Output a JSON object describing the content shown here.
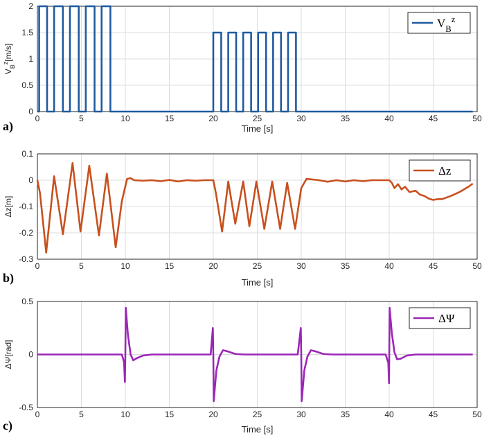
{
  "chart_data": [
    {
      "id": "a",
      "type": "line",
      "panel_label": "a)",
      "xlabel": "Time [s]",
      "ylabel": "V_B^z[m/s]",
      "legend": "V_B^z",
      "color": "#1f5aa0",
      "xlim": [
        0,
        50
      ],
      "ylim": [
        0,
        2
      ],
      "xticks": [
        0,
        5,
        10,
        15,
        20,
        25,
        30,
        35,
        40,
        45,
        50
      ],
      "yticks": [
        0,
        0.5,
        1,
        1.5,
        2
      ],
      "ytick_labels": [
        "0",
        "0.5",
        "1",
        "1.5",
        "2"
      ],
      "series": [
        {
          "name": "V_B^z",
          "x": [
            0,
            0.2,
            0.2,
            1.1,
            1.1,
            1.9,
            1.9,
            2.9,
            2.9,
            3.7,
            3.7,
            4.7,
            4.7,
            5.5,
            5.5,
            6.5,
            6.5,
            7.3,
            7.3,
            8.3,
            8.3,
            9.1,
            9.1,
            20.0,
            20.0,
            20.9,
            20.9,
            21.7,
            21.7,
            22.6,
            22.6,
            23.4,
            23.4,
            24.3,
            24.3,
            25.1,
            25.1,
            26.0,
            26.0,
            26.8,
            26.8,
            27.7,
            27.7,
            28.5,
            28.5,
            29.4,
            29.4,
            49.5
          ],
          "y": [
            0,
            0,
            2,
            2,
            0,
            0,
            2,
            2,
            0,
            0,
            2,
            2,
            0,
            0,
            2,
            2,
            0,
            0,
            2,
            2,
            0,
            0,
            0,
            0,
            1.5,
            1.5,
            0,
            0,
            1.5,
            1.5,
            0,
            0,
            1.5,
            1.5,
            0,
            0,
            1.5,
            1.5,
            0,
            0,
            1.5,
            1.5,
            0,
            0,
            1.5,
            1.5,
            0,
            0
          ]
        }
      ]
    },
    {
      "id": "b",
      "type": "line",
      "panel_label": "b)",
      "xlabel": "Time [s]",
      "ylabel": "Δz[m]",
      "legend": "Δz",
      "color": "#c8501e",
      "xlim": [
        0,
        50
      ],
      "ylim": [
        -0.3,
        0.1
      ],
      "xticks": [
        0,
        5,
        10,
        15,
        20,
        25,
        30,
        35,
        40,
        45,
        50
      ],
      "yticks": [
        -0.3,
        -0.2,
        -0.1,
        0,
        0.1
      ],
      "ytick_labels": [
        "-0.3",
        "-0.2",
        "-0.1",
        "0",
        "0.1"
      ],
      "series": [
        {
          "name": "Δz",
          "x": [
            0,
            0.3,
            1.0,
            1.9,
            2.9,
            4.0,
            4.9,
            5.9,
            7.0,
            7.9,
            8.9,
            9.6,
            10.2,
            10.6,
            11,
            12,
            13,
            14,
            15,
            16,
            17,
            18,
            19,
            20,
            20.3,
            21.0,
            21.7,
            22.5,
            23.4,
            24.1,
            24.9,
            25.8,
            26.7,
            27.6,
            28.4,
            29.3,
            30,
            30.6,
            31.2,
            32,
            33,
            34,
            35,
            36,
            37,
            38,
            39,
            40,
            40.3,
            40.6,
            41.0,
            41.4,
            41.8,
            42.3,
            43.0,
            43.5,
            44.0,
            44.5,
            45.0,
            45.5,
            46.0,
            47.0,
            48.0,
            49.0,
            49.5
          ],
          "y": [
            0,
            -0.05,
            -0.275,
            0.015,
            -0.205,
            0.065,
            -0.195,
            0.055,
            -0.21,
            0.025,
            -0.255,
            -0.08,
            0.005,
            0.008,
            0.0,
            -0.002,
            0.0,
            -0.004,
            0.001,
            -0.005,
            0.0,
            -0.002,
            0.0,
            0.0,
            -0.05,
            -0.195,
            -0.005,
            -0.165,
            -0.005,
            -0.175,
            -0.005,
            -0.185,
            -0.005,
            -0.185,
            -0.01,
            -0.185,
            -0.03,
            0.005,
            0.003,
            0.0,
            -0.006,
            0.0,
            -0.005,
            0.0,
            -0.004,
            0.0,
            0.0,
            0.0,
            -0.01,
            -0.03,
            -0.015,
            -0.035,
            -0.025,
            -0.045,
            -0.04,
            -0.055,
            -0.06,
            -0.07,
            -0.075,
            -0.072,
            -0.072,
            -0.06,
            -0.045,
            -0.025,
            -0.013
          ]
        }
      ]
    },
    {
      "id": "c",
      "type": "line",
      "panel_label": "c)",
      "xlabel": "Time [s]",
      "ylabel": "ΔΨ[rad]",
      "legend": "ΔΨ",
      "color": "#9b26b6",
      "xlim": [
        0,
        50
      ],
      "ylim": [
        -0.5,
        0.5
      ],
      "xticks": [
        0,
        5,
        10,
        15,
        20,
        25,
        30,
        35,
        40,
        45,
        50
      ],
      "yticks": [
        -0.5,
        0,
        0.5
      ],
      "ytick_labels": [
        "-0.5",
        "0",
        "0.5"
      ],
      "series": [
        {
          "name": "ΔΨ",
          "x": [
            0,
            9.6,
            9.85,
            9.95,
            10.0,
            10.05,
            10.3,
            10.6,
            10.9,
            11.3,
            12,
            13,
            19.7,
            19.95,
            20.0,
            20.05,
            20.35,
            20.7,
            21.1,
            21.6,
            22.5,
            23.5,
            29.6,
            29.95,
            30.0,
            30.05,
            30.35,
            30.7,
            31.1,
            31.6,
            32.5,
            33.5,
            39.6,
            39.9,
            39.98,
            40.05,
            40.3,
            40.6,
            40.9,
            41.3,
            42,
            43,
            49.5
          ],
          "y": [
            0,
            0,
            -0.07,
            -0.26,
            0.0,
            0.44,
            0.18,
            0.0,
            -0.055,
            -0.035,
            -0.01,
            0.0,
            0.0,
            0.25,
            0.0,
            -0.44,
            -0.15,
            -0.02,
            0.04,
            0.03,
            0.005,
            0.0,
            0.0,
            0.25,
            0.0,
            -0.44,
            -0.15,
            -0.02,
            0.04,
            0.03,
            0.005,
            0.0,
            0.0,
            -0.08,
            -0.27,
            0.44,
            0.2,
            0.02,
            -0.045,
            -0.04,
            -0.01,
            0.0,
            0.0
          ]
        }
      ]
    }
  ]
}
